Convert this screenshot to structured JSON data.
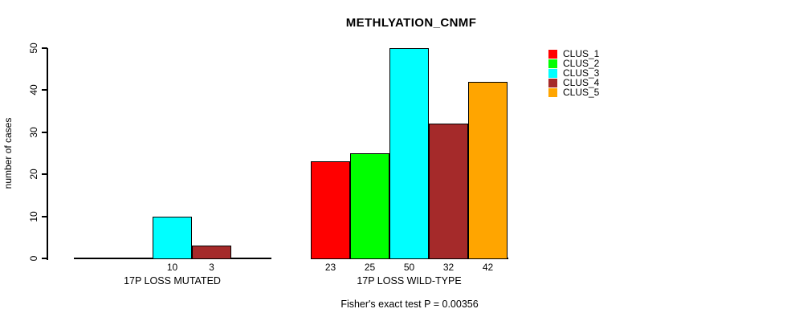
{
  "chart_data": {
    "type": "bar",
    "title": "METHLYATION_CNMF",
    "ylabel": "number of cases",
    "ylim": [
      0,
      50
    ],
    "yticks": [
      0,
      10,
      20,
      30,
      40,
      50
    ],
    "grid": false,
    "legend_position": "top-right",
    "series": [
      {
        "name": "CLUS_1",
        "color": "#FF0000"
      },
      {
        "name": "CLUS_2",
        "color": "#00FF00"
      },
      {
        "name": "CLUS_3",
        "color": "#00FFFF"
      },
      {
        "name": "CLUS_4",
        "color": "#A52A2A"
      },
      {
        "name": "CLUS_5",
        "color": "#FFA500"
      }
    ],
    "groups": [
      {
        "label": "17P LOSS MUTATED",
        "values": [
          0,
          0,
          10,
          3,
          0
        ]
      },
      {
        "label": "17P LOSS WILD-TYPE",
        "values": [
          23,
          25,
          50,
          32,
          42
        ]
      }
    ],
    "footnote": "Fisher's exact test P = 0.00356"
  },
  "colors": {
    "background": "#FFFFFF",
    "axis": "#000000",
    "bar_border": "#000000",
    "text": "#000000"
  }
}
